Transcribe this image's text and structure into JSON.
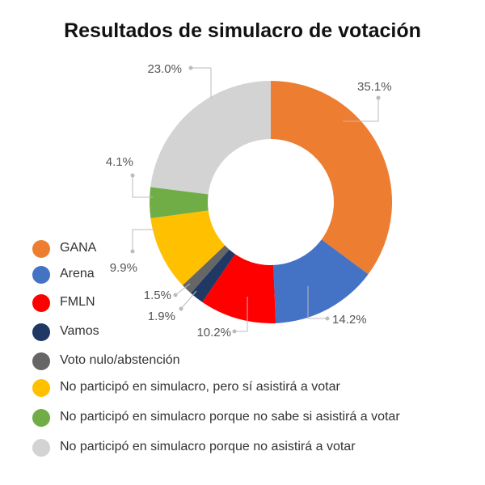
{
  "chart_data": {
    "type": "pie",
    "variant": "donut",
    "title": "Resultados de simulacro de votación",
    "series": [
      {
        "name": "GANA",
        "value": 35.1,
        "label": "35.1%",
        "color": "#ED7D31"
      },
      {
        "name": "Arena",
        "value": 14.2,
        "label": "14.2%",
        "color": "#4472C4"
      },
      {
        "name": "FMLN",
        "value": 10.2,
        "label": "10.2%",
        "color": "#FF0000"
      },
      {
        "name": "Vamos",
        "value": 1.9,
        "label": "1.9%",
        "color": "#1F3864"
      },
      {
        "name": "Voto nulo/abstención",
        "value": 1.5,
        "label": "1.5%",
        "color": "#666666"
      },
      {
        "name": "No participó en simulacro, pero sí asistirá a votar",
        "value": 9.9,
        "label": "9.9%",
        "color": "#FFC000"
      },
      {
        "name": "No participó en simulacro porque no sabe si asistirá a votar",
        "value": 4.1,
        "label": "4.1%",
        "color": "#70AD47"
      },
      {
        "name": "No participó en simulacro porque no asistirá a votar",
        "value": 23.0,
        "label": "23.0%",
        "color": "#D3D3D3"
      }
    ],
    "legend_position": "bottom-left",
    "leader_color": "#BBBBBB"
  }
}
